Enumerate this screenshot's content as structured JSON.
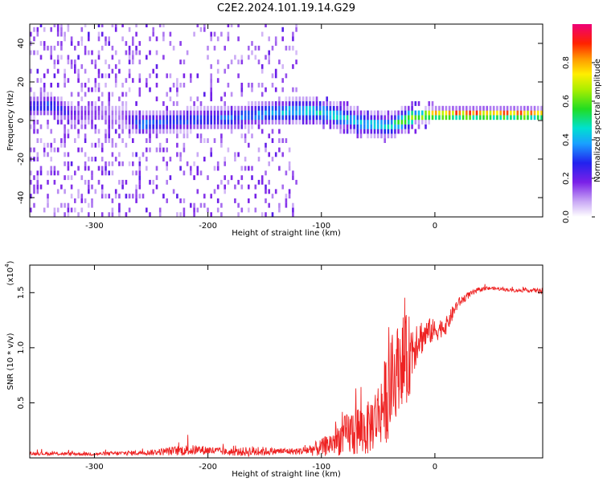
{
  "title": "C2E2.2024.101.19.14.G29",
  "chart_data": [
    {
      "type": "heatmap",
      "xlabel": "Height of straight line (km)",
      "ylabel": "Frequency (Hz)",
      "xlim": [
        -357,
        95
      ],
      "ylim": [
        -50,
        50
      ],
      "xticks": [
        -300,
        -200,
        -100,
        0
      ],
      "yticks": [
        -40,
        -20,
        0,
        20,
        40
      ],
      "colorbar": {
        "label": "Normalized spectral amplitude",
        "range": [
          0.0,
          1.0
        ],
        "ticks": [
          0.0,
          0.2,
          0.4,
          0.6,
          0.8
        ],
        "colormap": "white-purple-blue-cyan-green-yellow-orange-red-magenta"
      },
      "ridge": {
        "x": [
          -355,
          -340,
          -320,
          -300,
          -280,
          -260,
          -240,
          -220,
          -200,
          -180,
          -160,
          -140,
          -120,
          -100,
          -80,
          -60,
          -40,
          -20,
          0,
          20,
          40,
          60,
          80,
          95
        ],
        "frequency": [
          6,
          7,
          2,
          3,
          2,
          -3,
          -2,
          -1,
          0,
          0,
          2,
          3,
          4,
          3,
          0,
          -3,
          -4,
          1,
          2,
          2,
          2,
          2,
          2,
          2
        ],
        "amplitude": [
          0.25,
          0.3,
          0.2,
          0.15,
          0.1,
          0.35,
          0.3,
          0.3,
          0.3,
          0.32,
          0.35,
          0.4,
          0.45,
          0.45,
          0.45,
          0.4,
          0.45,
          0.6,
          0.85,
          0.9,
          0.9,
          0.9,
          0.9,
          0.75
        ]
      }
    },
    {
      "type": "line",
      "xlabel": "Height of straight line (km)",
      "ylabel": "SNR (10 * v/v)",
      "multiplier_label": "(x10",
      "multiplier_exp": "4",
      "multiplier_close": ")",
      "xlim": [
        -357,
        95
      ],
      "ylim": [
        0,
        17500
      ],
      "xticks": [
        -300,
        -200,
        -100,
        0
      ],
      "yticks": [
        5000,
        10000,
        15000
      ],
      "ytick_labels": [
        "0.5",
        "1.0",
        "1.5"
      ],
      "color": "#ee2222",
      "series": [
        {
          "x": [
            -357,
            -300,
            -250,
            -220,
            -200,
            -180,
            -160,
            -140,
            -120,
            -100,
            -90,
            -80,
            -70,
            -60,
            -50,
            -40,
            -35,
            -30,
            -25,
            -20,
            -15,
            -10,
            -5,
            0,
            5,
            10,
            15,
            20,
            30,
            40,
            50,
            60,
            70,
            80,
            90,
            95
          ],
          "y": [
            400,
            350,
            500,
            700,
            700,
            500,
            600,
            600,
            600,
            900,
            1400,
            2000,
            2500,
            2500,
            4000,
            6000,
            7500,
            9000,
            8500,
            10000,
            11000,
            11000,
            11500,
            11500,
            11800,
            12000,
            13000,
            14000,
            14800,
            15300,
            15400,
            15300,
            15200,
            15200,
            15200,
            15100
          ],
          "noise": [
            150,
            150,
            250,
            500,
            400,
            300,
            500,
            300,
            300,
            800,
            1200,
            1800,
            2500,
            2400,
            3000,
            4500,
            4000,
            4000,
            4500,
            3000,
            2000,
            1500,
            1200,
            1100,
            900,
            800,
            700,
            500,
            300,
            200,
            150,
            150,
            150,
            150,
            200,
            300
          ]
        }
      ]
    }
  ]
}
